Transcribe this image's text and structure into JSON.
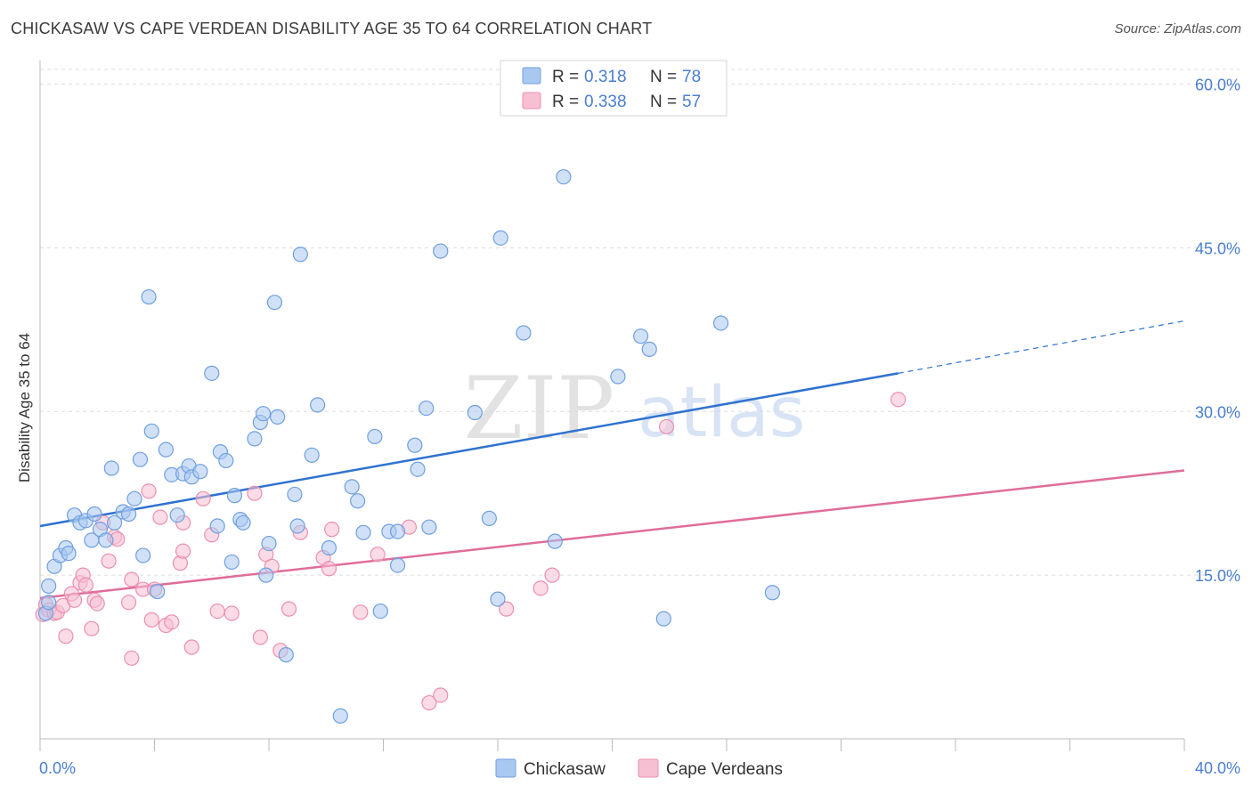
{
  "header": {
    "title": "CHICKASAW VS CAPE VERDEAN DISABILITY AGE 35 TO 64 CORRELATION CHART",
    "source": "Source: ZipAtlas.com"
  },
  "watermark": {
    "zip": "ZIP",
    "atlas": "atlas"
  },
  "colors": {
    "chickasaw_fill": "#a9c8f0",
    "chickasaw_stroke": "#6f9fe0",
    "chickasaw_line": "#2f72cf",
    "cape_fill": "#f7bfd2",
    "cape_stroke": "#ec8fb0",
    "cape_line": "#e06d99",
    "axis_text": "#4a7fd0",
    "grid": "#dddddd"
  },
  "chart_data": {
    "type": "scatter",
    "title": "CHICKASAW VS CAPE VERDEAN DISABILITY AGE 35 TO 64 CORRELATION CHART",
    "xlabel": "",
    "ylabel": "Disability Age 35 to 64",
    "xlim": [
      0,
      40
    ],
    "ylim": [
      0,
      62
    ],
    "x_tick_labels": [
      "0.0%",
      "40.0%"
    ],
    "y_ticks": [
      15,
      30,
      45,
      60
    ],
    "y_tick_labels": [
      "15.0%",
      "30.0%",
      "45.0%",
      "60.0%"
    ],
    "grid": "horizontal dashed",
    "legend_position": "top-center",
    "legend": [
      {
        "series": "Chickasaw",
        "r_label": "R =",
        "r": "0.318",
        "n_label": "N =",
        "n": "78"
      },
      {
        "series": "Cape Verdeans",
        "r_label": "R =",
        "r": "0.338",
        "n_label": "N =",
        "n": "57"
      }
    ],
    "series": [
      {
        "name": "Chickasaw",
        "trend": {
          "x0": 0,
          "y0": 19.5,
          "x1": 30,
          "y1": 33.5,
          "dashed_to_x": 40,
          "dashed_to_y": 38.3
        },
        "points": [
          [
            0.2,
            11.5
          ],
          [
            0.3,
            12.5
          ],
          [
            0.3,
            14
          ],
          [
            0.5,
            15.8
          ],
          [
            0.7,
            16.8
          ],
          [
            0.9,
            17.5
          ],
          [
            1.0,
            17.0
          ],
          [
            1.2,
            20.5
          ],
          [
            1.4,
            19.8
          ],
          [
            1.6,
            20.0
          ],
          [
            1.8,
            18.2
          ],
          [
            1.9,
            20.6
          ],
          [
            2.1,
            19.2
          ],
          [
            2.3,
            18.2
          ],
          [
            2.6,
            19.8
          ],
          [
            2.5,
            24.8
          ],
          [
            2.9,
            20.8
          ],
          [
            3.1,
            20.6
          ],
          [
            3.3,
            22.0
          ],
          [
            3.5,
            25.6
          ],
          [
            3.6,
            16.8
          ],
          [
            3.8,
            40.5
          ],
          [
            3.9,
            28.2
          ],
          [
            4.1,
            13.5
          ],
          [
            4.4,
            26.5
          ],
          [
            4.6,
            24.2
          ],
          [
            4.8,
            20.5
          ],
          [
            5.0,
            24.3
          ],
          [
            5.2,
            25.0
          ],
          [
            5.3,
            24.0
          ],
          [
            5.6,
            24.5
          ],
          [
            6.0,
            33.5
          ],
          [
            6.2,
            19.5
          ],
          [
            6.3,
            26.3
          ],
          [
            6.5,
            25.5
          ],
          [
            6.7,
            16.2
          ],
          [
            6.8,
            22.3
          ],
          [
            7.0,
            20.1
          ],
          [
            7.1,
            19.8
          ],
          [
            7.5,
            27.5
          ],
          [
            7.7,
            29.0
          ],
          [
            7.8,
            29.8
          ],
          [
            7.9,
            15.0
          ],
          [
            8.0,
            17.9
          ],
          [
            8.2,
            40.0
          ],
          [
            8.3,
            29.5
          ],
          [
            8.6,
            7.7
          ],
          [
            8.9,
            22.4
          ],
          [
            9.0,
            19.5
          ],
          [
            9.1,
            44.4
          ],
          [
            9.5,
            26.0
          ],
          [
            9.7,
            30.6
          ],
          [
            10.1,
            17.5
          ],
          [
            10.5,
            2.1
          ],
          [
            10.9,
            23.1
          ],
          [
            11.1,
            21.8
          ],
          [
            11.3,
            18.9
          ],
          [
            11.7,
            27.7
          ],
          [
            11.9,
            11.7
          ],
          [
            12.2,
            19.0
          ],
          [
            12.5,
            15.9
          ],
          [
            12.5,
            19.0
          ],
          [
            13.1,
            26.9
          ],
          [
            13.2,
            24.7
          ],
          [
            13.5,
            30.3
          ],
          [
            13.6,
            19.4
          ],
          [
            14.0,
            44.7
          ],
          [
            15.2,
            29.9
          ],
          [
            15.7,
            20.2
          ],
          [
            16.0,
            12.8
          ],
          [
            16.1,
            45.9
          ],
          [
            16.9,
            37.2
          ],
          [
            18.0,
            18.1
          ],
          [
            18.3,
            51.5
          ],
          [
            20.2,
            33.2
          ],
          [
            21.0,
            36.9
          ],
          [
            21.3,
            35.7
          ],
          [
            21.8,
            11.0
          ],
          [
            23.8,
            38.1
          ],
          [
            25.6,
            13.4
          ]
        ]
      },
      {
        "name": "Cape Verdeans",
        "trend": {
          "x0": 0,
          "y0": 12.9,
          "x1": 40,
          "y1": 24.6
        },
        "points": [
          [
            0.1,
            11.4
          ],
          [
            0.2,
            12.3
          ],
          [
            0.3,
            11.8
          ],
          [
            0.5,
            11.5
          ],
          [
            0.6,
            11.6
          ],
          [
            0.8,
            12.2
          ],
          [
            0.9,
            9.4
          ],
          [
            1.1,
            13.3
          ],
          [
            1.2,
            12.7
          ],
          [
            1.4,
            14.3
          ],
          [
            1.5,
            15.0
          ],
          [
            1.6,
            14.1
          ],
          [
            1.8,
            10.1
          ],
          [
            1.9,
            12.7
          ],
          [
            2.0,
            12.4
          ],
          [
            2.2,
            19.8
          ],
          [
            2.4,
            16.3
          ],
          [
            2.6,
            18.5
          ],
          [
            2.7,
            18.3
          ],
          [
            3.1,
            12.5
          ],
          [
            3.2,
            14.6
          ],
          [
            3.2,
            7.4
          ],
          [
            3.6,
            13.7
          ],
          [
            3.8,
            22.7
          ],
          [
            3.9,
            10.9
          ],
          [
            4.0,
            13.7
          ],
          [
            4.2,
            20.3
          ],
          [
            4.4,
            10.4
          ],
          [
            4.6,
            10.7
          ],
          [
            4.9,
            16.1
          ],
          [
            5.0,
            17.2
          ],
          [
            5.0,
            19.8
          ],
          [
            5.3,
            8.4
          ],
          [
            5.7,
            22.0
          ],
          [
            6.0,
            18.7
          ],
          [
            6.2,
            11.7
          ],
          [
            6.7,
            11.5
          ],
          [
            7.5,
            22.5
          ],
          [
            7.7,
            9.3
          ],
          [
            7.9,
            16.9
          ],
          [
            8.1,
            15.8
          ],
          [
            8.4,
            8.1
          ],
          [
            8.7,
            11.9
          ],
          [
            9.1,
            18.9
          ],
          [
            9.9,
            16.6
          ],
          [
            10.1,
            15.6
          ],
          [
            10.2,
            19.2
          ],
          [
            11.2,
            11.6
          ],
          [
            11.8,
            16.9
          ],
          [
            12.9,
            19.4
          ],
          [
            13.6,
            3.3
          ],
          [
            14.0,
            4.0
          ],
          [
            16.3,
            11.9
          ],
          [
            17.5,
            13.8
          ],
          [
            17.9,
            15.0
          ],
          [
            21.9,
            28.6
          ],
          [
            30.0,
            31.1
          ]
        ]
      }
    ]
  }
}
